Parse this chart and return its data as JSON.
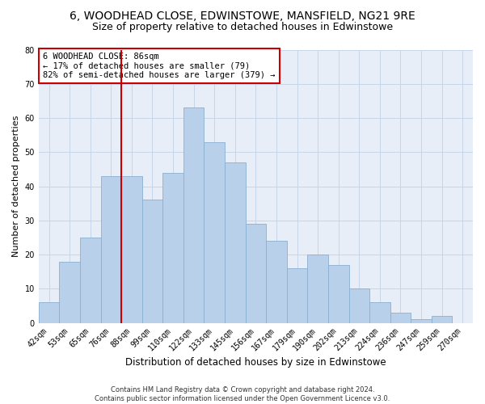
{
  "title1": "6, WOODHEAD CLOSE, EDWINSTOWE, MANSFIELD, NG21 9RE",
  "title2": "Size of property relative to detached houses in Edwinstowe",
  "xlabel": "Distribution of detached houses by size in Edwinstowe",
  "ylabel": "Number of detached properties",
  "footnote1": "Contains HM Land Registry data © Crown copyright and database right 2024.",
  "footnote2": "Contains public sector information licensed under the Open Government Licence v3.0.",
  "bar_labels": [
    "42sqm",
    "53sqm",
    "65sqm",
    "76sqm",
    "88sqm",
    "99sqm",
    "110sqm",
    "122sqm",
    "133sqm",
    "145sqm",
    "156sqm",
    "167sqm",
    "179sqm",
    "190sqm",
    "202sqm",
    "213sqm",
    "224sqm",
    "236sqm",
    "247sqm",
    "259sqm",
    "270sqm"
  ],
  "bar_values": [
    6,
    18,
    25,
    43,
    43,
    36,
    44,
    63,
    53,
    47,
    29,
    24,
    16,
    20,
    17,
    10,
    6,
    3,
    1,
    2,
    0
  ],
  "bar_color": "#b8d0ea",
  "bar_edge_color": "#8ab0d0",
  "vline_color": "#cc0000",
  "vline_index": 3.5,
  "annotation_text": "6 WOODHEAD CLOSE: 86sqm\n← 17% of detached houses are smaller (79)\n82% of semi-detached houses are larger (379) →",
  "annotation_box_color": "#ffffff",
  "annotation_box_edge": "#cc0000",
  "ylim": [
    0,
    80
  ],
  "yticks": [
    0,
    10,
    20,
    30,
    40,
    50,
    60,
    70,
    80
  ],
  "ax_facecolor": "#e8eef8",
  "background_color": "#ffffff",
  "grid_color": "#c8d4e8",
  "title1_fontsize": 10,
  "title2_fontsize": 9,
  "xlabel_fontsize": 8.5,
  "ylabel_fontsize": 8,
  "tick_fontsize": 7,
  "annotation_fontsize": 7.5,
  "footnote_fontsize": 6
}
